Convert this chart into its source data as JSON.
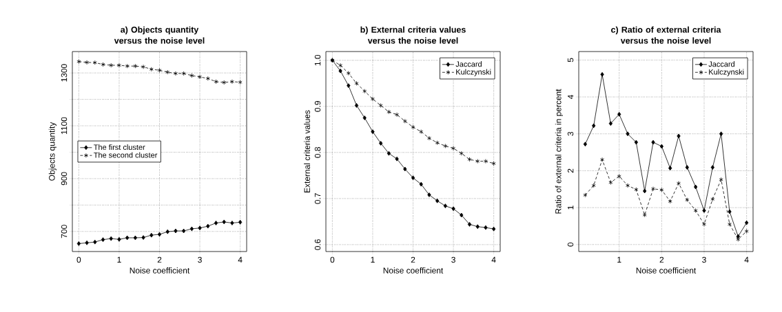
{
  "chart_data": [
    {
      "type": "line",
      "title": "a) Objects quantity versus the noise level",
      "xlabel": "Noise coefficient",
      "ylabel": "Objects quantity",
      "x": [
        0,
        0.2,
        0.4,
        0.6,
        0.8,
        1.0,
        1.2,
        1.4,
        1.6,
        1.8,
        2.0,
        2.2,
        2.4,
        2.6,
        2.8,
        3.0,
        3.2,
        3.4,
        3.6,
        3.8,
        4.0
      ],
      "series": [
        {
          "name": "The first cluster",
          "color": "#000000",
          "marker": "diamond",
          "line_style": "solid",
          "values": [
            654,
            657,
            660,
            669,
            673,
            670,
            676,
            676,
            677,
            686,
            689,
            699,
            702,
            702,
            710,
            713,
            720,
            732,
            736,
            732,
            735
          ]
        },
        {
          "name": "The second cluster",
          "color": "#000000",
          "marker": "cross",
          "line_style": "dashed",
          "values": [
            1343,
            1340,
            1339,
            1332,
            1329,
            1329,
            1326,
            1326,
            1323,
            1314,
            1310,
            1303,
            1298,
            1298,
            1290,
            1285,
            1279,
            1267,
            1264,
            1267,
            1265
          ]
        }
      ],
      "xlim": [
        -0.16,
        4.16
      ],
      "ylim": [
        624,
        1381
      ],
      "xticks": [
        0,
        1,
        2,
        3,
        4
      ],
      "yticks": [
        700,
        {
          "value": 800,
          "label": null
        },
        900,
        {
          "value": 1000,
          "label": null
        },
        1100,
        {
          "value": 1200,
          "label": null
        },
        1300
      ],
      "grid": true,
      "legend": "left"
    },
    {
      "type": "line",
      "title": "b) External criteria values versus the noise level",
      "xlabel": "Noise coefficient",
      "ylabel": "External criteria values",
      "x": [
        0,
        0.2,
        0.4,
        0.6,
        0.8,
        1.0,
        1.2,
        1.4,
        1.6,
        1.8,
        2.0,
        2.2,
        2.4,
        2.6,
        2.8,
        3.0,
        3.2,
        3.4,
        3.6,
        3.8,
        4.0
      ],
      "series": [
        {
          "name": "Jaccard",
          "color": "#000000",
          "marker": "diamond",
          "line_style": "solid",
          "values": [
            1.0,
            0.977,
            0.945,
            0.902,
            0.875,
            0.845,
            0.82,
            0.798,
            0.786,
            0.764,
            0.745,
            0.731,
            0.708,
            0.695,
            0.684,
            0.678,
            0.664,
            0.644,
            0.639,
            0.637,
            0.634
          ]
        },
        {
          "name": "Kulczynski",
          "color": "#000000",
          "marker": "cross",
          "line_style": "dashed",
          "values": [
            1.0,
            0.989,
            0.972,
            0.95,
            0.933,
            0.916,
            0.902,
            0.888,
            0.882,
            0.868,
            0.855,
            0.845,
            0.831,
            0.821,
            0.814,
            0.809,
            0.798,
            0.785,
            0.781,
            0.781,
            0.776
          ]
        }
      ],
      "xlim": [
        -0.16,
        4.16
      ],
      "ylim": [
        0.585,
        1.019
      ],
      "xticks": [
        0,
        1,
        2,
        3,
        4
      ],
      "yticks": [
        0.6,
        0.7,
        0.8,
        0.9,
        {
          "value": 1.0,
          "label": "1.0"
        }
      ],
      "grid": true,
      "legend": "top right"
    },
    {
      "type": "line",
      "title": "c) Ratio of external criteria versus the noise level",
      "xlabel": "Noise coefficient",
      "ylabel": "Ratio of external criteria in percent",
      "x": [
        0.2,
        0.4,
        0.6,
        0.8,
        1.0,
        1.2,
        1.4,
        1.6,
        1.8,
        2.0,
        2.2,
        2.4,
        2.6,
        2.8,
        3.0,
        3.2,
        3.4,
        3.6,
        3.8,
        4.0
      ],
      "series": [
        {
          "name": "Jaccard",
          "color": "#000000",
          "marker": "diamond",
          "line_style": "solid",
          "values": [
            2.72,
            3.22,
            4.61,
            3.28,
            3.53,
            3.0,
            2.77,
            1.45,
            2.77,
            2.66,
            2.07,
            2.94,
            2.09,
            1.56,
            0.92,
            2.09,
            3.0,
            0.89,
            0.22,
            0.59
          ]
        },
        {
          "name": "Kulczynski",
          "color": "#000000",
          "marker": "cross",
          "line_style": "dashed",
          "values": [
            1.34,
            1.6,
            2.3,
            1.68,
            1.85,
            1.6,
            1.49,
            0.8,
            1.51,
            1.48,
            1.17,
            1.66,
            1.21,
            0.92,
            0.55,
            1.23,
            1.76,
            0.55,
            0.14,
            0.36
          ]
        }
      ],
      "xlim": [
        0.048,
        4.152
      ],
      "ylim": [
        -0.19,
        5.23
      ],
      "xticks": [
        1,
        2,
        3,
        4
      ],
      "yticks": [
        0,
        1,
        2,
        3,
        4,
        5
      ],
      "grid": true,
      "legend": "top right"
    }
  ]
}
